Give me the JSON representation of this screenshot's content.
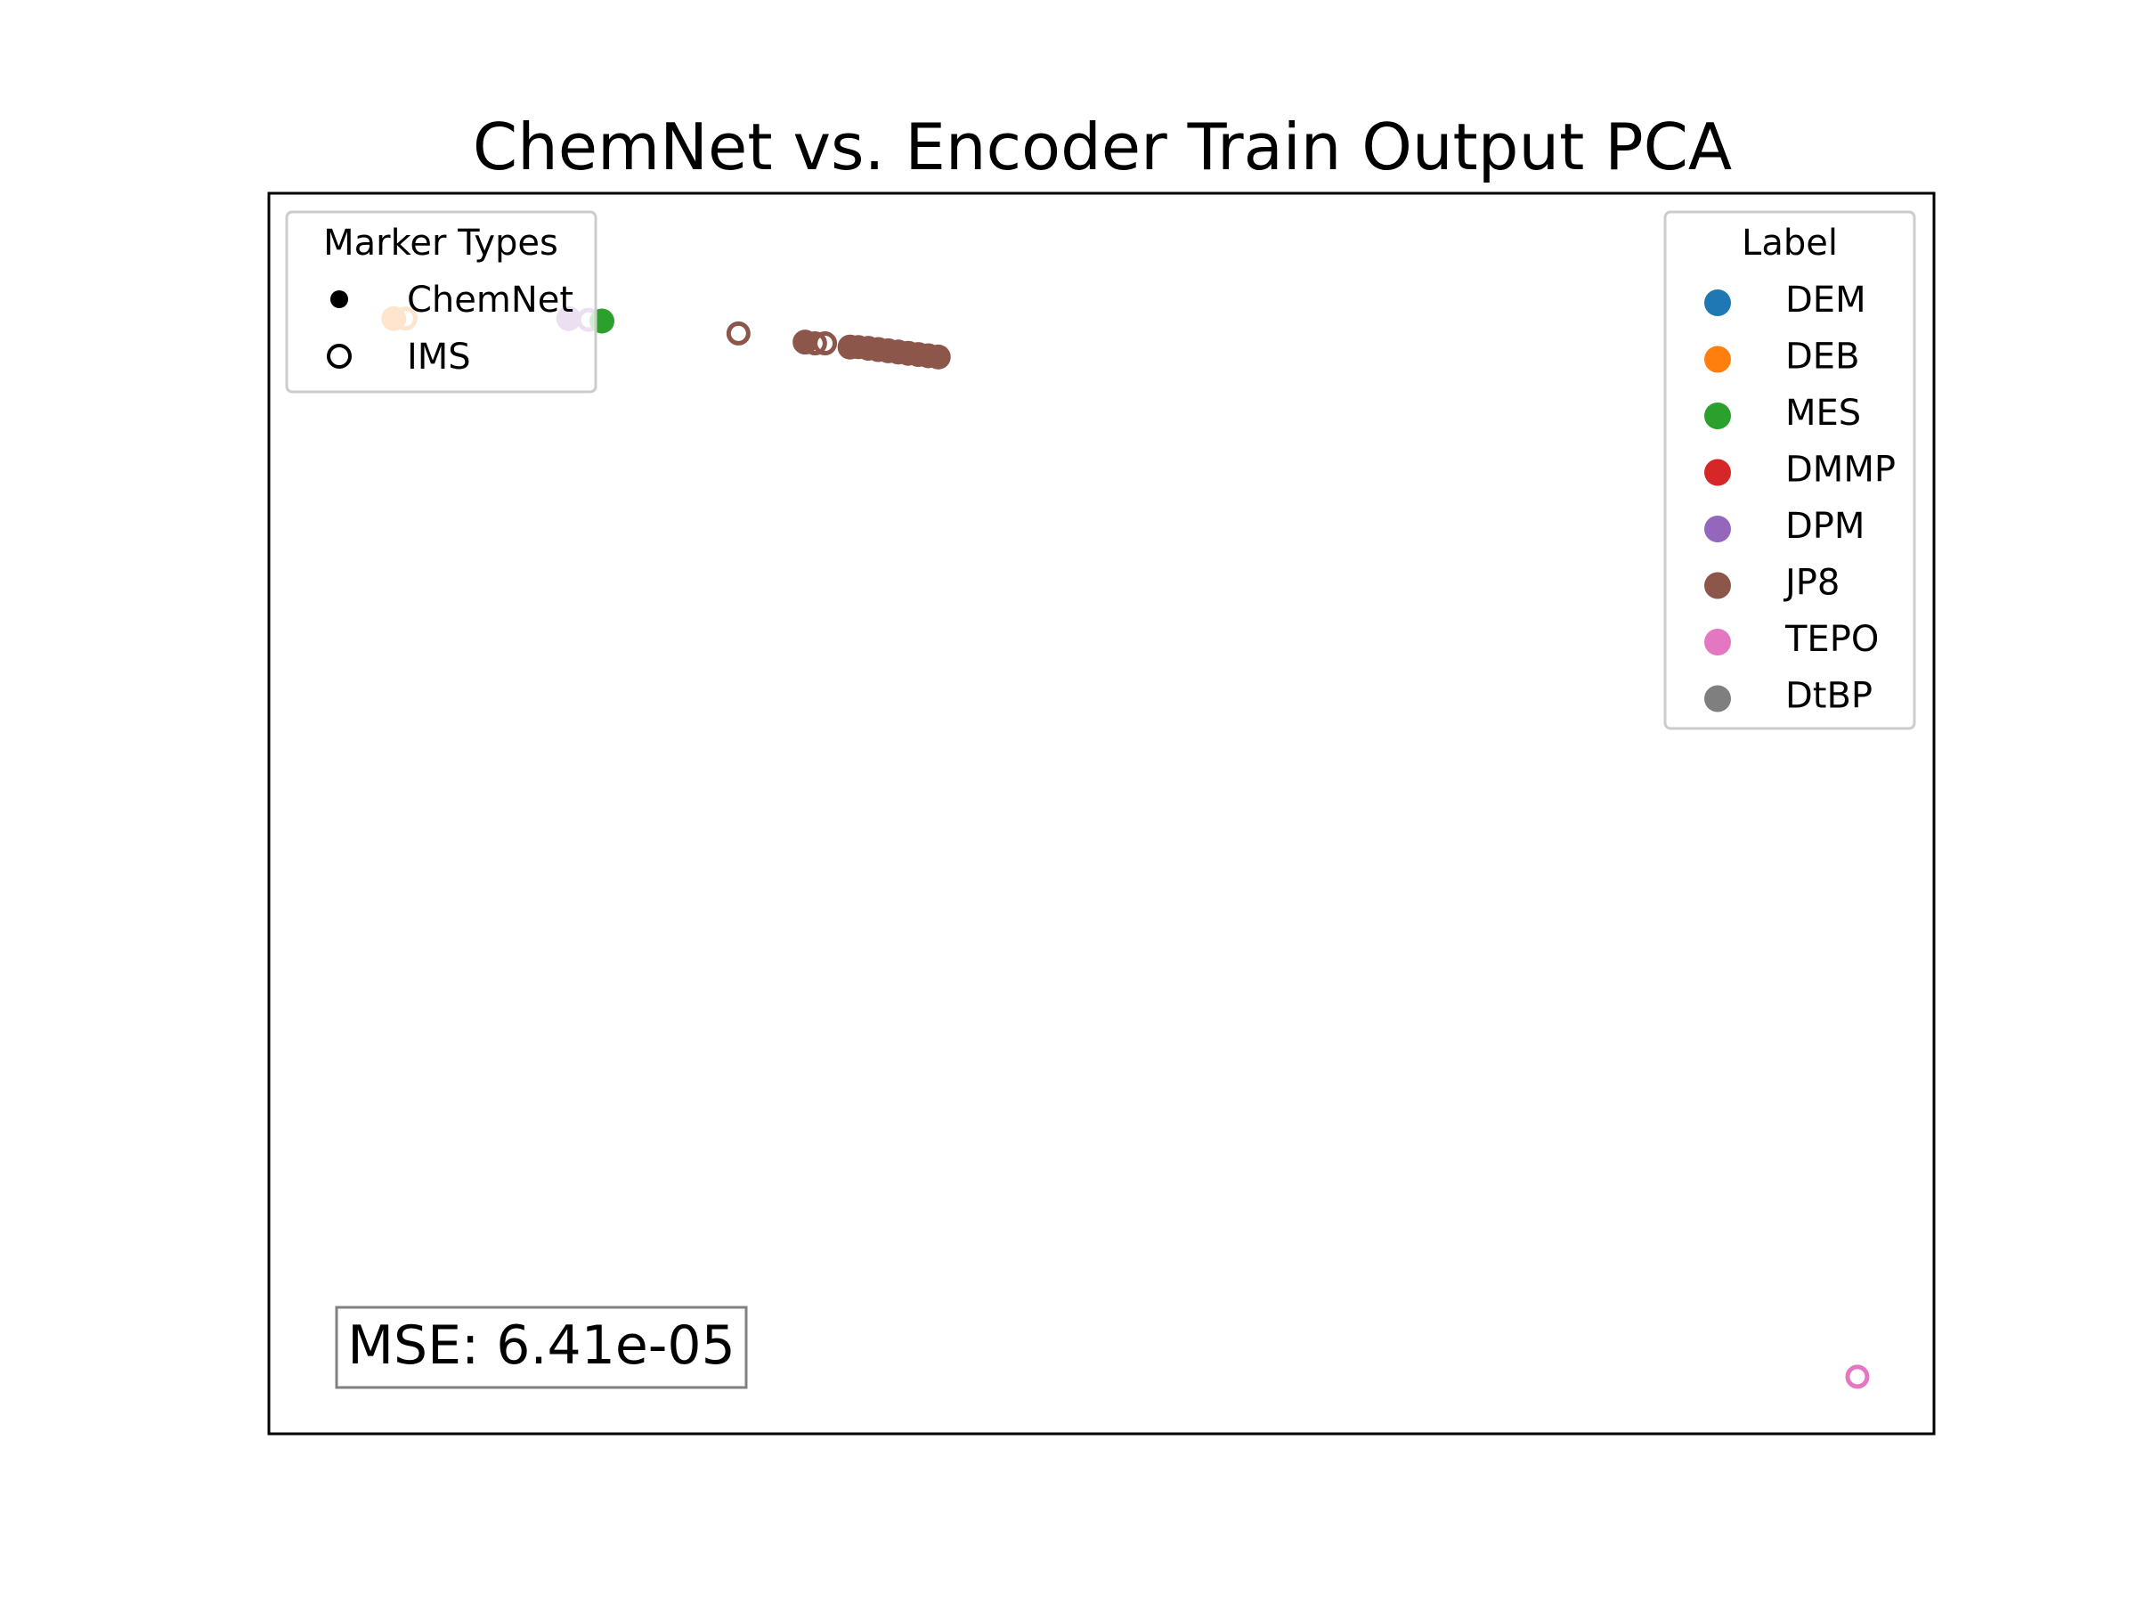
{
  "chart_data": {
    "type": "scatter",
    "title": "ChemNet vs. Encoder Train Output PCA",
    "xlabel": "",
    "ylabel": "",
    "xlim": [
      0,
      100
    ],
    "ylim": [
      0,
      100
    ],
    "axis_ticks_visible": false,
    "grid": false,
    "marker_legend": {
      "title": "Marker Types",
      "placement": "top-left",
      "entries": [
        {
          "label": "ChemNet",
          "style": "filled"
        },
        {
          "label": "IMS",
          "style": "hollow"
        }
      ]
    },
    "label_legend": {
      "title": "Label",
      "placement": "top-right",
      "entries": [
        {
          "label": "DEM",
          "color": "#1f77b4"
        },
        {
          "label": "DEB",
          "color": "#ff7f0e"
        },
        {
          "label": "MES",
          "color": "#2ca02c"
        },
        {
          "label": "DMMP",
          "color": "#d62728"
        },
        {
          "label": "DPM",
          "color": "#9467bd"
        },
        {
          "label": "JP8",
          "color": "#8c564b"
        },
        {
          "label": "TEPO",
          "color": "#e377c2"
        },
        {
          "label": "DtBP",
          "color": "#7f7f7f"
        }
      ]
    },
    "annotation": "MSE: 6.41e-05",
    "points": [
      {
        "label": "DEB",
        "type": "ChemNet",
        "x": 7.5,
        "y": 89.9
      },
      {
        "label": "DEB",
        "type": "IMS",
        "x": 8.2,
        "y": 89.9
      },
      {
        "label": "DPM",
        "type": "ChemNet",
        "x": 18.0,
        "y": 89.9
      },
      {
        "label": "DPM",
        "type": "IMS",
        "x": 19.2,
        "y": 89.8
      },
      {
        "label": "MES",
        "type": "ChemNet",
        "x": 20.0,
        "y": 89.7
      },
      {
        "label": "JP8",
        "type": "IMS",
        "x": 28.2,
        "y": 88.7
      },
      {
        "label": "JP8",
        "type": "ChemNet",
        "x": 32.2,
        "y": 88.0
      },
      {
        "label": "JP8",
        "type": "IMS",
        "x": 32.8,
        "y": 87.9
      },
      {
        "label": "JP8",
        "type": "IMS",
        "x": 33.4,
        "y": 87.9
      },
      {
        "label": "JP8",
        "type": "ChemNet",
        "x": 34.9,
        "y": 87.6
      },
      {
        "label": "JP8",
        "type": "IMS",
        "x": 35.4,
        "y": 87.6
      },
      {
        "label": "JP8",
        "type": "ChemNet",
        "x": 36.0,
        "y": 87.5
      },
      {
        "label": "JP8",
        "type": "ChemNet",
        "x": 36.6,
        "y": 87.4
      },
      {
        "label": "JP8",
        "type": "ChemNet",
        "x": 37.2,
        "y": 87.3
      },
      {
        "label": "JP8",
        "type": "ChemNet",
        "x": 37.8,
        "y": 87.2
      },
      {
        "label": "JP8",
        "type": "ChemNet",
        "x": 38.4,
        "y": 87.1
      },
      {
        "label": "JP8",
        "type": "ChemNet",
        "x": 39.0,
        "y": 87.0
      },
      {
        "label": "JP8",
        "type": "ChemNet",
        "x": 39.6,
        "y": 86.9
      },
      {
        "label": "JP8",
        "type": "ChemNet",
        "x": 40.2,
        "y": 86.8
      },
      {
        "label": "TEPO",
        "type": "IMS",
        "x": 95.4,
        "y": 4.6
      }
    ]
  }
}
